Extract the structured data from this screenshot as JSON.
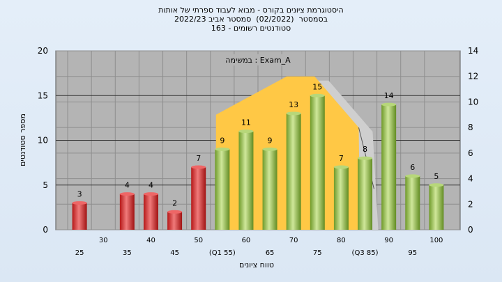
{
  "titles": {
    "line1": "היסטוגרמת ציונים בקורס - מבוא לעבוד ספרתי של אותות",
    "line2": "בסמסטר  (02/2022)  סמסטר אביב 2022/23",
    "line3": "סטודנטים רשומים - 163"
  },
  "chart_data": {
    "type": "bar",
    "annotation": "במשימה : Exam_A",
    "ylabel": "מספר סטודנטים",
    "xlabel": "טווח ציונים",
    "ylim_left": [
      0,
      20
    ],
    "ylim_right": [
      0,
      14
    ],
    "yticks_left": [
      "0",
      "5",
      "10",
      "15",
      "20"
    ],
    "yticks_right": [
      "0",
      "2",
      "4",
      "6",
      "8",
      "10",
      "12",
      "14"
    ],
    "categories": [
      "25",
      "30",
      "35",
      "40",
      "45",
      "50",
      "(Q1 55)",
      "60",
      "65",
      "70",
      "75",
      "80",
      "(Q3 85)",
      "90",
      "95",
      "100"
    ],
    "values": [
      3,
      0,
      4,
      4,
      2,
      7,
      9,
      11,
      9,
      13,
      15,
      7,
      8,
      14,
      6,
      5
    ],
    "value_labels": [
      "3",
      "",
      "4",
      "4",
      "2",
      "7",
      "9",
      "11",
      "9",
      "13",
      "15",
      "7",
      "8",
      "14",
      "6",
      "5"
    ],
    "bar_colors": [
      "red",
      "red",
      "red",
      "red",
      "red",
      "red",
      "green",
      "green",
      "green",
      "green",
      "green",
      "green",
      "green",
      "green",
      "green",
      "green"
    ],
    "colors": {
      "red": "#d42a2a",
      "green": "#8cbf3f",
      "area": "#ffc845",
      "plot_bg": "#b4b4b4",
      "shadow": "#d0d0d0"
    },
    "overlay_area": {
      "x": [
        "(Q1 55)",
        "75",
        "(Q3 85)"
      ],
      "y_right": [
        9,
        12,
        8
      ]
    },
    "grid": true
  }
}
